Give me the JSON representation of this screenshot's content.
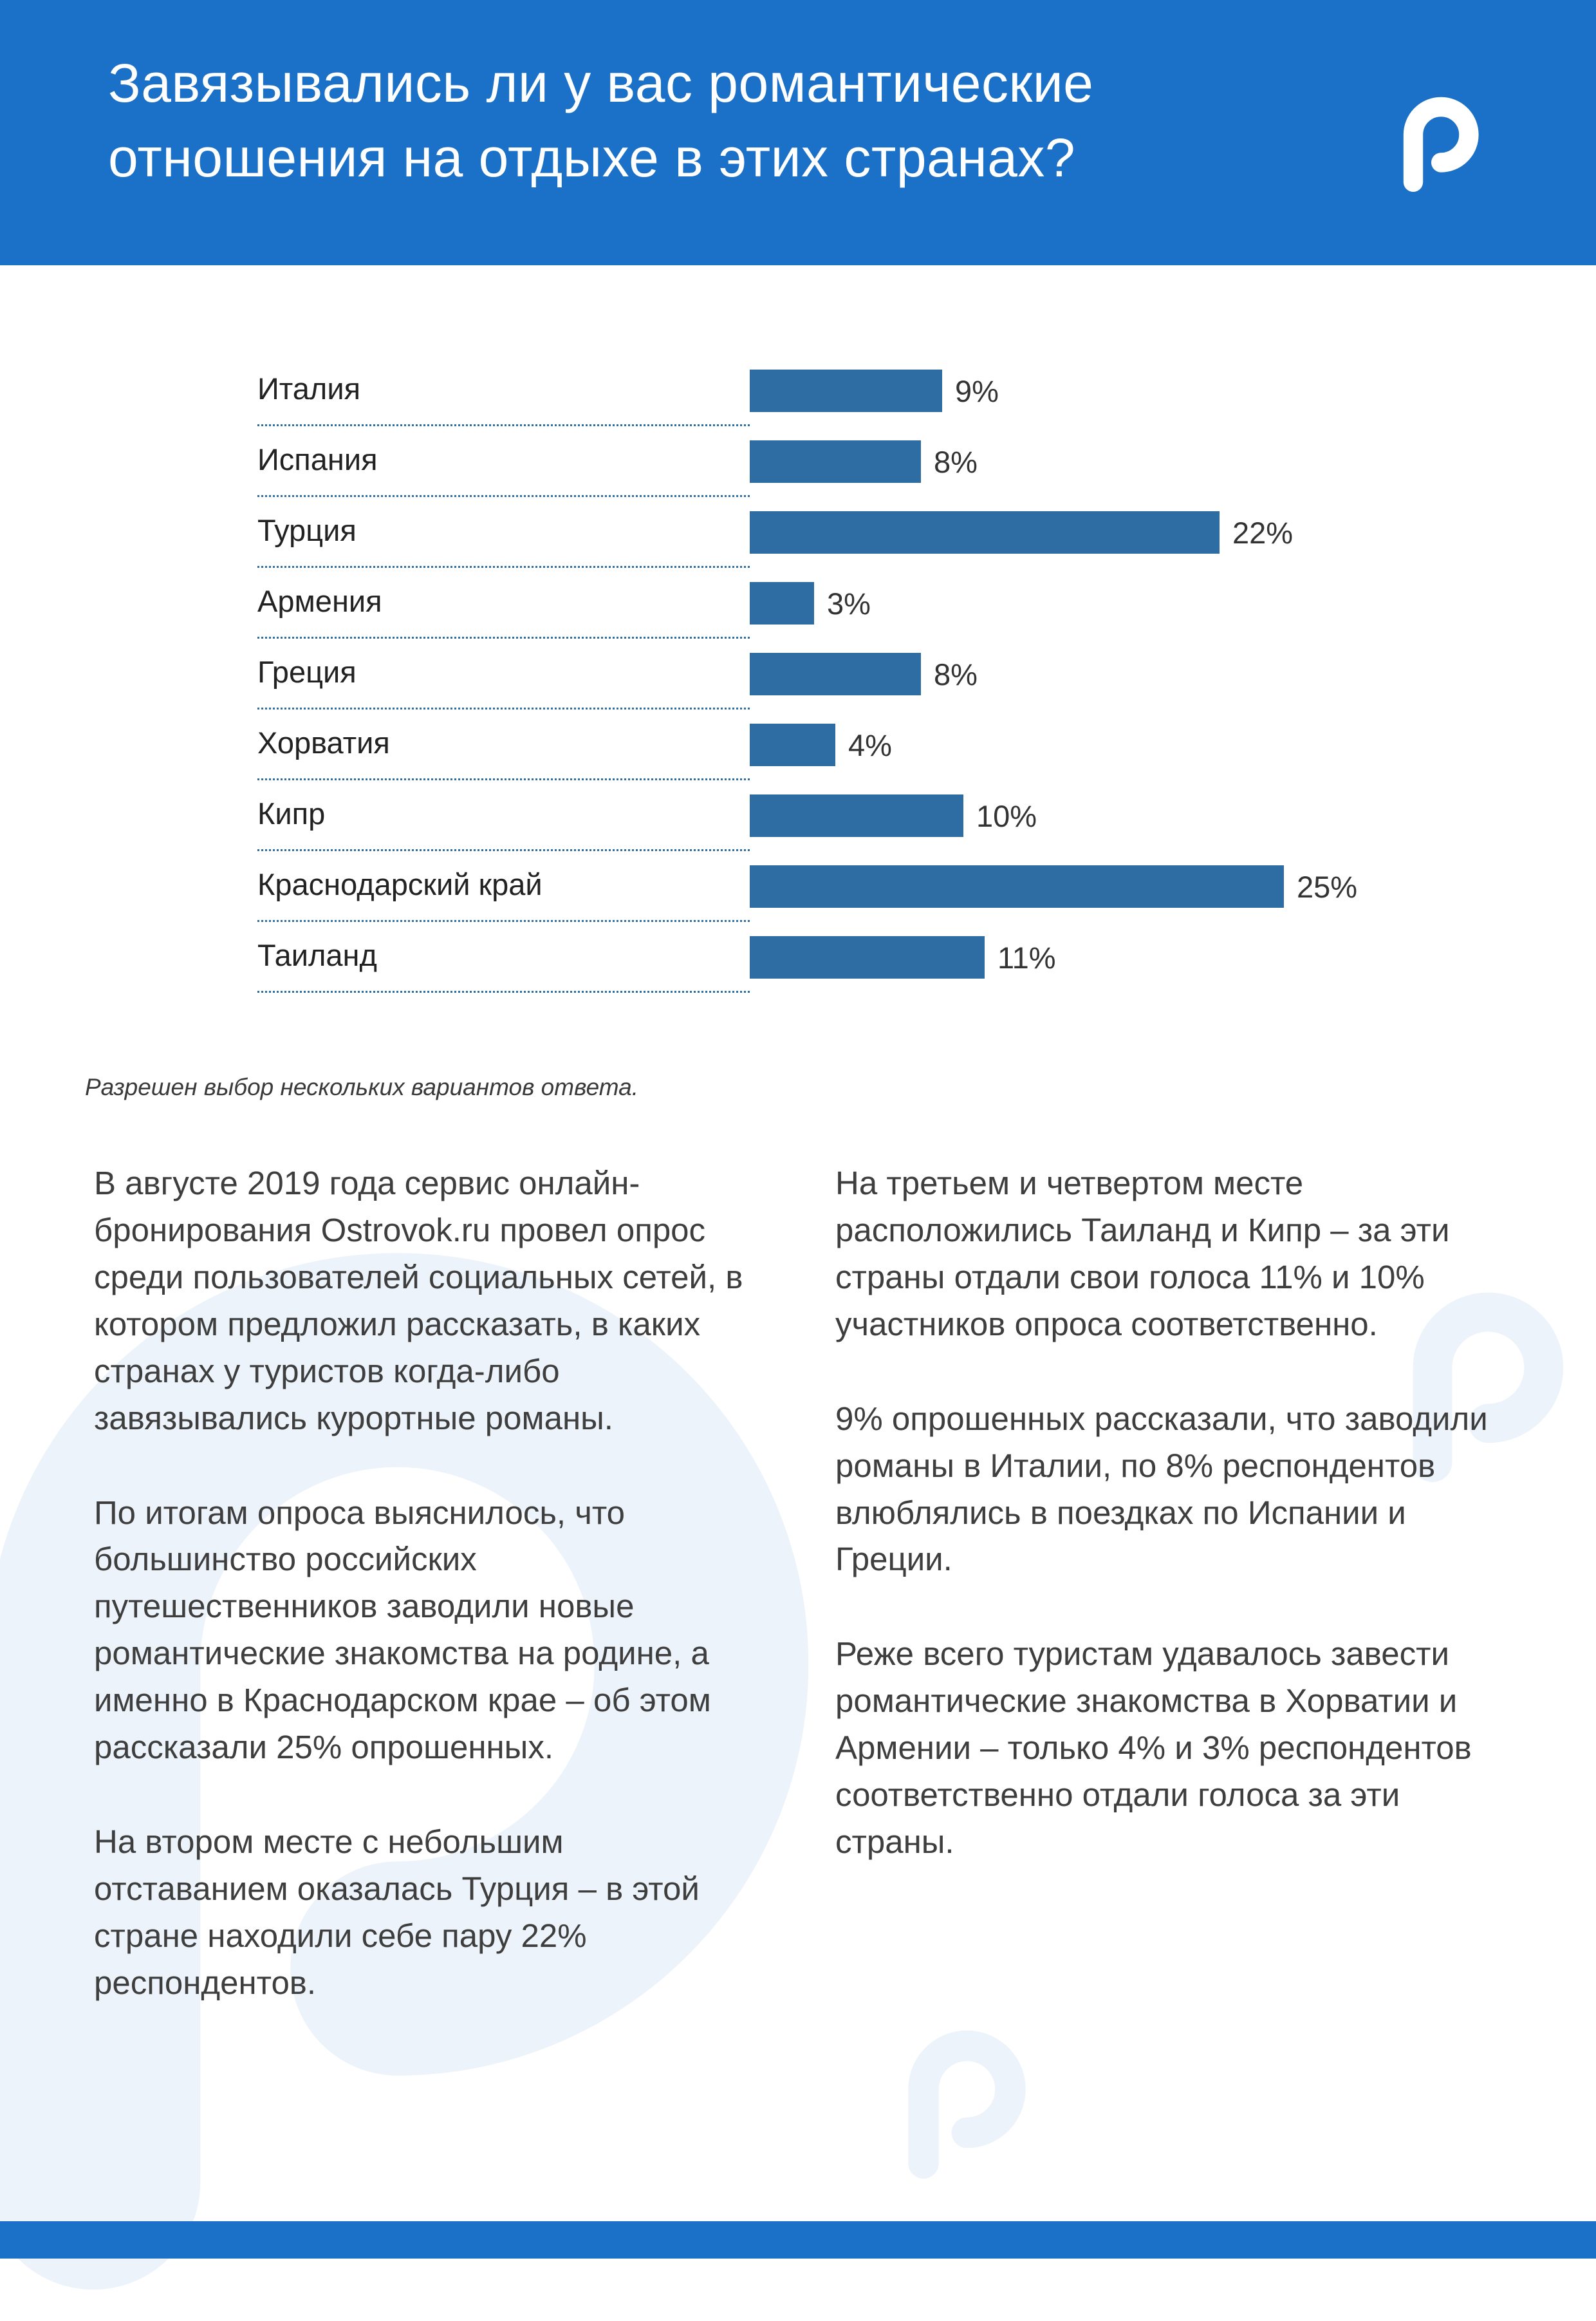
{
  "header": {
    "title_lines": [
      "Завязывались ли у вас романтические",
      "отношения на отдыхе в этих странах?"
    ],
    "bg_color": "#1b70c8",
    "logo_icon": "ostrovok-pin-icon",
    "logo_color": "#ffffff"
  },
  "chart_data": {
    "type": "bar",
    "orientation": "horizontal",
    "title": "Завязывались ли у вас романтические отношения на отдыхе в этих странах?",
    "categories": [
      "Италия",
      "Испания",
      "Турция",
      "Армения",
      "Греция",
      "Хорватия",
      "Кипр",
      "Краснодарский край",
      "Таиланд"
    ],
    "values": [
      9,
      8,
      22,
      3,
      8,
      4,
      10,
      25,
      11
    ],
    "value_suffix": "%",
    "xlim": [
      0,
      27
    ],
    "bar_color": "#2e6da4",
    "leader_line_style": "dotted",
    "legend": "none",
    "grid": "off"
  },
  "note": "Разрешен выбор нескольких вариантов ответа.",
  "article": {
    "left": [
      "В августе 2019 года сервис онлайн-бронирования Ostrovok.ru провел опрос среди пользователей социальных сетей, в котором предложил рассказать, в каких странах у туристов когда-либо завязывались курортные романы.",
      "По итогам опроса выяснилось, что большинство российских путешественников заводили новые романтические знакомства на родине, а именно в Краснодарском крае – об этом рассказали 25% опрошенных.",
      "На втором месте с небольшим отставанием оказалась Турция – в этой стране находили себе пару 22% респондентов."
    ],
    "right": [
      "На третьем и четвертом месте расположились Таиланд и Кипр – за эти страны отдали свои голоса 11% и 10% участников опроса соответственно.",
      "9% опрошенных рассказали, что заводили романы в Италии, по 8% респондентов влюблялись в поездках по Испании и Греции.",
      "Реже всего туристам удавалось завести романтические знакомства в Хорватии и Армении – только 4% и 3% респондентов соответственно отдали голоса за эти страны."
    ]
  },
  "footer": {
    "bg_color": "#1b70c8"
  },
  "watermark": {
    "icon": "ostrovok-pin-icon",
    "color": "#ecf3fa"
  }
}
